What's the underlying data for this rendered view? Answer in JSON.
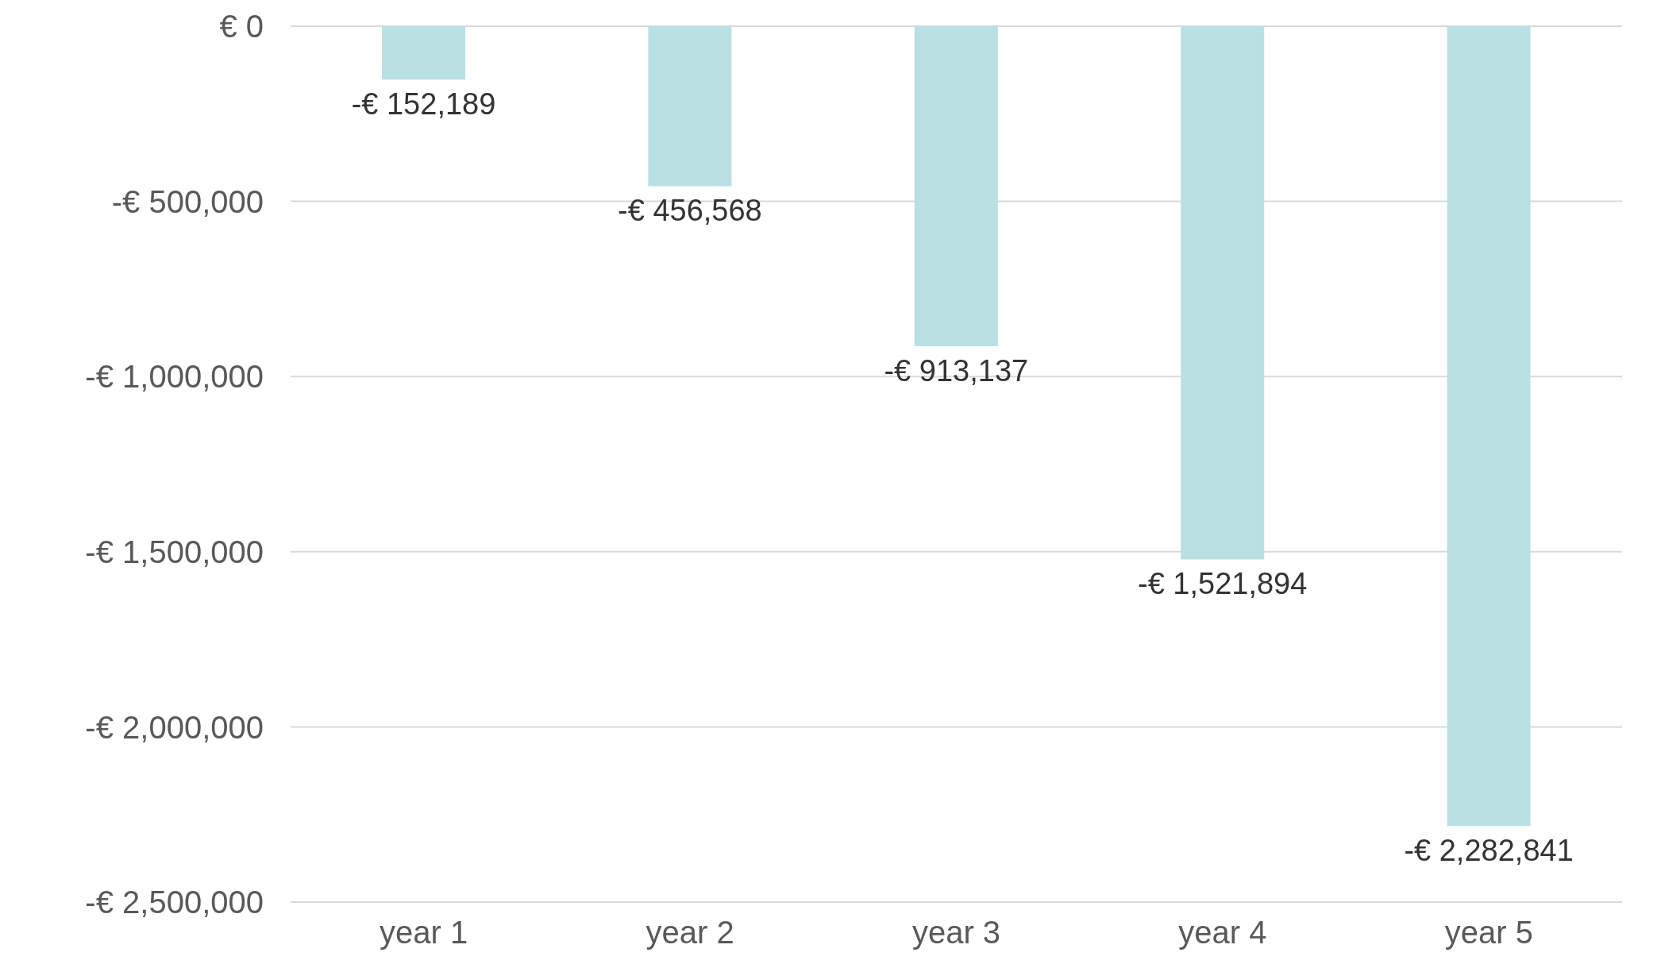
{
  "chart_data": {
    "type": "bar",
    "categories": [
      "year 1",
      "year 2",
      "year 3",
      "year 4",
      "year 5"
    ],
    "series": [
      {
        "color": "#b9e0e3",
        "values": [
          -152189,
          -456568,
          -913137,
          -1521894,
          -2282841
        ],
        "value_labels": [
          "-€ 152,189",
          "-€ 456,568",
          "-€ 913,137",
          "-€ 1,521,894",
          "-€ 2,282,841"
        ]
      }
    ],
    "ylim": [
      -2500000,
      0
    ],
    "yticks": [
      {
        "value": 0,
        "label": "€ 0"
      },
      {
        "value": -500000,
        "label": "-€ 500,000"
      },
      {
        "value": -1000000,
        "label": "-€ 1,000,000"
      },
      {
        "value": -1500000,
        "label": "-€ 1,500,000"
      },
      {
        "value": -2000000,
        "label": "-€ 2,000,000"
      },
      {
        "value": -2500000,
        "label": "-€ 2,500,000"
      }
    ],
    "grid": "y",
    "legend": false
  }
}
